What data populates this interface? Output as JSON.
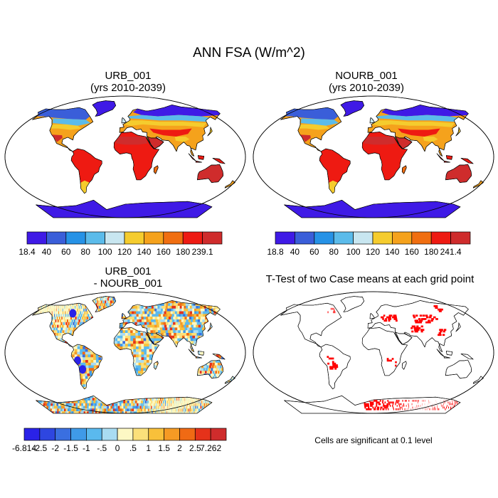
{
  "title": "ANN FSA (W/m^2)",
  "panels": [
    {
      "id": "p1",
      "title_line1": "URB_001",
      "title_line2": "(yrs 2010-2039)",
      "colorbar": {
        "labels": [
          "18.4",
          "40",
          "60",
          "80",
          "100",
          "120",
          "140",
          "160",
          "180",
          "239.1"
        ],
        "colors": [
          "#3f1ae6",
          "#3a5ed9",
          "#2692e6",
          "#5bbbea",
          "#c8e6f0",
          "#f5cc2e",
          "#f5a21c",
          "#f06e10",
          "#ee1a12",
          "#cf2c2c"
        ]
      }
    },
    {
      "id": "p2",
      "title_line1": "NOURB_001",
      "title_line2": "(yrs 2010-2039)",
      "colorbar": {
        "labels": [
          "18.8",
          "40",
          "60",
          "80",
          "100",
          "120",
          "140",
          "160",
          "180",
          "241.4"
        ],
        "colors": [
          "#3f1ae6",
          "#3a5ed9",
          "#2692e6",
          "#5bbbea",
          "#c8e6f0",
          "#f5cc2e",
          "#f5a21c",
          "#f06e10",
          "#ee1a12",
          "#cf2c2c"
        ]
      }
    },
    {
      "id": "p3",
      "title_line1": "URB_001",
      "title_line2": "- NOURB_001",
      "colorbar": {
        "labels": [
          "-6.814",
          "-2.5",
          "-2",
          "-1.5",
          "-1",
          "-.5",
          "0",
          ".5",
          "1",
          "1.5",
          "2",
          "2.5",
          "7.262"
        ],
        "colors": [
          "#2a22e8",
          "#2e46e0",
          "#3a6fe0",
          "#3f9ae8",
          "#5ab9ee",
          "#a9dcf2",
          "#fdf8c4",
          "#fbe07a",
          "#f8c03a",
          "#f59a24",
          "#f06a14",
          "#e5321a",
          "#cf2c2c"
        ]
      }
    },
    {
      "id": "p4",
      "title": "T-Test of two Case means at each grid point",
      "note": "Cells are significant at 0.1 level"
    }
  ]
}
